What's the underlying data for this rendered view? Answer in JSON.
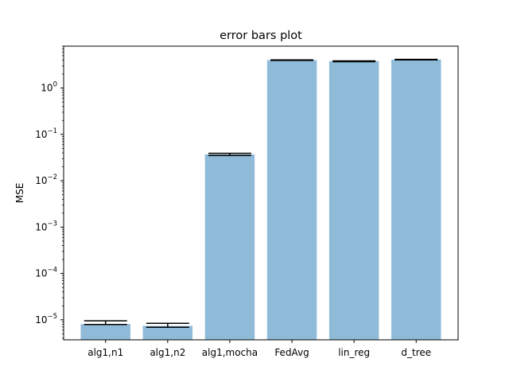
{
  "chart_data": {
    "type": "bar",
    "title": "error bars plot",
    "xlabel": "",
    "ylabel": "MSE",
    "yscale": "log",
    "ylim": [
      3.7e-06,
      8.0
    ],
    "grid": false,
    "categories": [
      "alg1,n1",
      "alg1,n2",
      "alg1,mocha",
      "FedAvg",
      "lin_reg",
      "d_tree"
    ],
    "values": [
      8.1e-06,
      7.4e-06,
      0.037,
      4.0,
      3.8,
      4.1
    ],
    "error_bars": [
      {
        "low": 7.9e-06,
        "high": 9.5e-06
      },
      {
        "low": 6.9e-06,
        "high": 8.4e-06
      },
      {
        "low": 0.035,
        "high": 0.039
      },
      {
        "low": 3.95,
        "high": 4.05
      },
      {
        "low": 3.7,
        "high": 3.85
      },
      {
        "low": 4.05,
        "high": 4.15
      }
    ],
    "y_ticks": [
      {
        "base": "10",
        "exp": "−5",
        "value": 1e-05
      },
      {
        "base": "10",
        "exp": "−4",
        "value": 0.0001
      },
      {
        "base": "10",
        "exp": "−3",
        "value": 0.001
      },
      {
        "base": "10",
        "exp": "−2",
        "value": 0.01
      },
      {
        "base": "10",
        "exp": "−1",
        "value": 0.1
      },
      {
        "base": "10",
        "exp": "0",
        "value": 1
      }
    ],
    "bar_color": "#8fbbd9",
    "error_color": "#000000"
  }
}
